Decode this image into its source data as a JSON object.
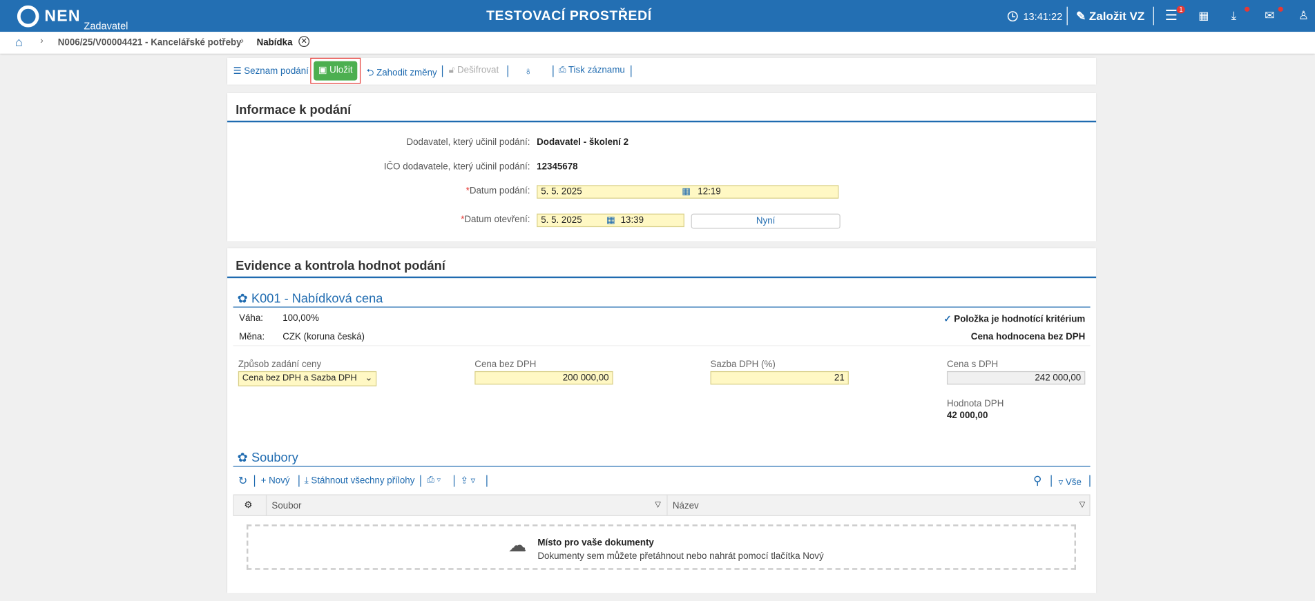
{
  "header": {
    "logo": "NEN",
    "role": "Zadavatel",
    "env_title": "TESTOVACÍ PROSTŘEDÍ",
    "time": "13:41:22",
    "create_button": "Založit VZ",
    "menu_badge": "1"
  },
  "breadcrumb": {
    "items": [
      "N006/25/V00004421 - Kancelářské potřeby",
      "Nabídka"
    ]
  },
  "toolbar": {
    "buttons": [
      "Seznam podání",
      "Uložit",
      "Zahodit změny",
      "Dešifrovat",
      "Tisk záznamu"
    ]
  },
  "info": {
    "title": "Informace k podání",
    "fields": [
      {
        "label": "Dodavatel, který učinil podání:",
        "value": "Dodavatel - školení 2"
      },
      {
        "label": "IČO dodavatele, který učinil podání:",
        "value": "12345678"
      },
      {
        "label": "Datum podání:",
        "date": "5. 5. 2025",
        "time": "12:19"
      },
      {
        "label": "Datum otevření:",
        "date": "5. 5. 2025",
        "time": "13:39",
        "button": "Nyní"
      }
    ]
  },
  "evidence": {
    "title": "Evidence a kontrola hodnot podání",
    "criterion": {
      "title": "K001 - Nabídková cena",
      "weight_label": "Váha:",
      "weight": "100,00%",
      "currency_label": "Měna:",
      "currency": "CZK (koruna česká)",
      "criterion_flag": "Položka je hodnotící kritérium",
      "evaluated": "Cena hodnocena bez DPH",
      "price_mode_label": "Způsob zadání ceny",
      "price_mode": "Cena bez DPH a Sazba DPH",
      "price_no_vat_label": "Cena bez DPH",
      "price_no_vat": "200 000,00",
      "vat_rate_label": "Sazba DPH (%)",
      "vat_rate": "21",
      "price_vat_label": "Cena s DPH",
      "price_vat": "242 000,00",
      "vat_value_label": "Hodnota DPH",
      "vat_value": "42 000,00"
    },
    "files": {
      "title": "Soubory",
      "buttons": [
        "Nový",
        "Stáhnout všechny přílohy",
        "Vše"
      ],
      "columns": [
        "Soubor",
        "Název"
      ],
      "drop_title": "Místo pro vaše dokumenty",
      "drop_text": "Dokumenty sem můžete přetáhnout nebo nahrát pomocí tlačítka Nový"
    }
  }
}
